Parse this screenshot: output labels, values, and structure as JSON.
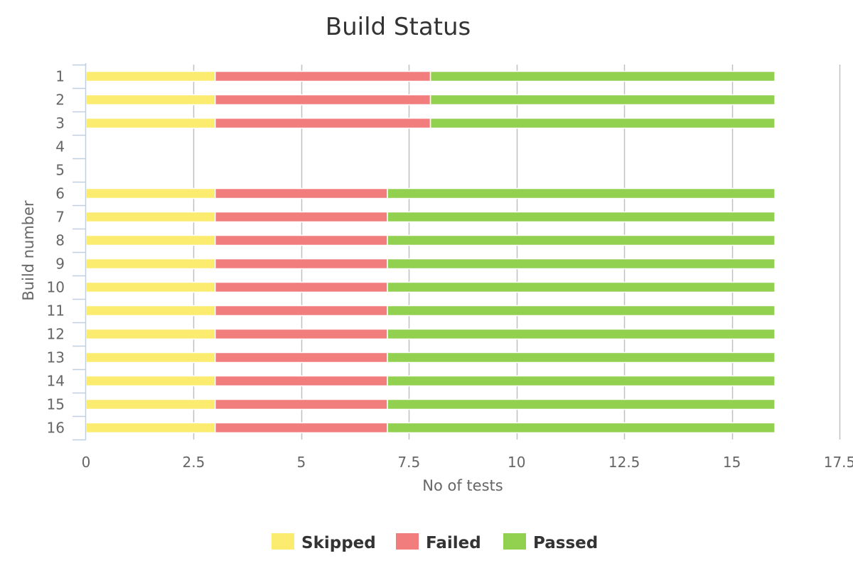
{
  "chart_data": {
    "type": "bar",
    "orientation": "horizontal",
    "stacked": true,
    "title": "Build Status",
    "xlabel": "No of tests",
    "ylabel": "Build number",
    "xlim": [
      0,
      17.5
    ],
    "x_ticks": [
      "0",
      "2.5",
      "5",
      "7.5",
      "10",
      "12.5",
      "15",
      "17.5"
    ],
    "x_tick_values": [
      0,
      2.5,
      5,
      7.5,
      10,
      12.5,
      15,
      17.5
    ],
    "grid": true,
    "legend_position": "bottom-center",
    "categories": [
      "1",
      "2",
      "3",
      "4",
      "5",
      "6",
      "7",
      "8",
      "9",
      "10",
      "11",
      "12",
      "13",
      "14",
      "15",
      "16"
    ],
    "series": [
      {
        "name": "Skipped",
        "color": "#fbeb6f",
        "values": [
          3,
          3,
          3,
          0,
          0,
          3,
          3,
          3,
          3,
          3,
          3,
          3,
          3,
          3,
          3,
          3
        ]
      },
      {
        "name": "Failed",
        "color": "#f27d7d",
        "values": [
          5,
          5,
          5,
          0,
          0,
          4,
          4,
          4,
          4,
          4,
          4,
          4,
          4,
          4,
          4,
          4
        ]
      },
      {
        "name": "Passed",
        "color": "#92d150",
        "values": [
          8,
          8,
          8,
          0,
          0,
          9,
          9,
          9,
          9,
          9,
          9,
          9,
          9,
          9,
          9,
          9
        ]
      }
    ]
  }
}
